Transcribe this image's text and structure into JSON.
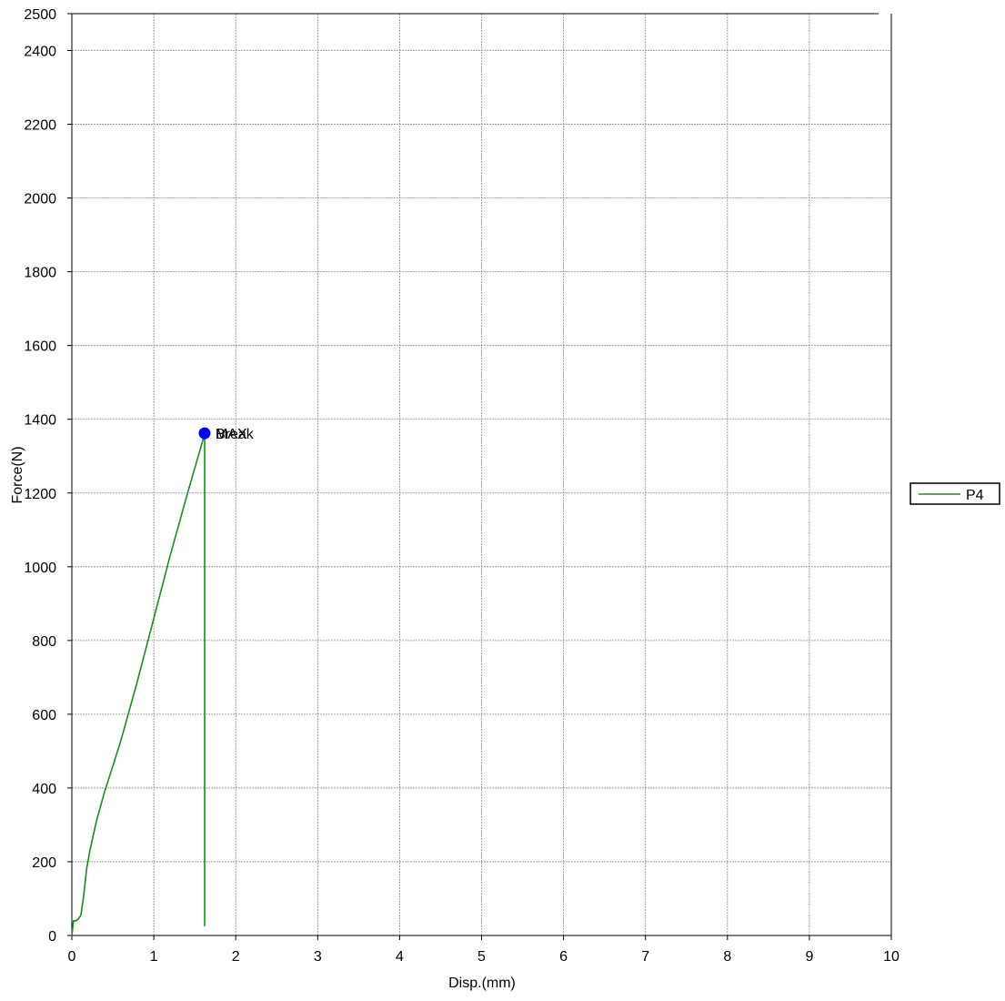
{
  "chart_data": {
    "type": "line",
    "xlabel": "Disp.(mm)",
    "ylabel": "Force(N)",
    "xlim": [
      0,
      10
    ],
    "ylim": [
      0,
      2500
    ],
    "x_ticks": [
      0,
      1,
      2,
      3,
      4,
      5,
      6,
      7,
      8,
      9,
      10
    ],
    "y_ticks": [
      0,
      200,
      400,
      600,
      800,
      1000,
      1200,
      1400,
      1600,
      1800,
      2000,
      2200,
      2400,
      2500
    ],
    "grid": true,
    "legend_position": "right",
    "series": [
      {
        "name": "P4",
        "color": "#1f8a1f",
        "x": [
          0.0,
          0.01,
          0.02,
          0.05,
          0.08,
          0.11,
          0.14,
          0.18,
          0.22,
          0.3,
          0.4,
          0.5,
          0.6,
          0.8,
          1.0,
          1.2,
          1.4,
          1.62,
          1.62,
          1.62
        ],
        "y": [
          0,
          20,
          40,
          40,
          45,
          55,
          100,
          180,
          230,
          310,
          390,
          460,
          530,
          690,
          860,
          1030,
          1190,
          1360,
          700,
          25
        ]
      }
    ],
    "markers": [
      {
        "x": 1.62,
        "y": 1362,
        "color": "#0000ee",
        "labels": [
          "MAX",
          "Break"
        ]
      }
    ]
  }
}
